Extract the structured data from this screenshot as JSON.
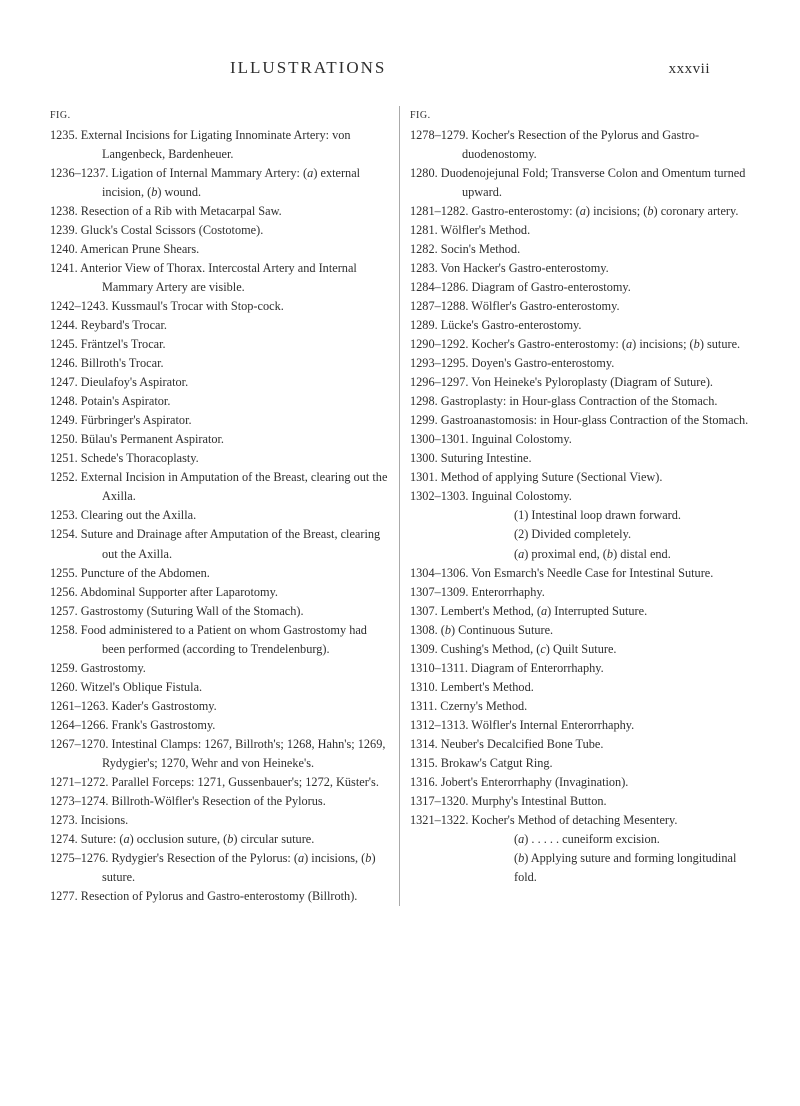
{
  "header": {
    "title": "ILLUSTRATIONS",
    "pagenum": "xxxvii"
  },
  "figLabel": "FIG.",
  "left": {
    "entries": [
      {
        "t": "1235. External Incisions for Ligating Innominate Artery: von Langenbeck, Bardenheuer."
      },
      {
        "t": "1236–1237. Ligation of Internal Mammary Artery: (a) external incision, (b) wound.",
        "i": true
      },
      {
        "t": "1238. Resection of a Rib with Metacarpal Saw."
      },
      {
        "t": "1239. Gluck's Costal Scissors (Costotome)."
      },
      {
        "t": "1240. American Prune Shears."
      },
      {
        "t": "1241. Anterior View of Thorax. Intercostal Artery and Internal Mammary Artery are visible."
      },
      {
        "t": "1242–1243. Kussmaul's Trocar with Stop-cock."
      },
      {
        "t": "1244. Reybard's Trocar."
      },
      {
        "t": "1245. Fräntzel's Trocar."
      },
      {
        "t": "1246. Billroth's Trocar."
      },
      {
        "t": "1247. Dieulafoy's Aspirator."
      },
      {
        "t": "1248. Potain's Aspirator."
      },
      {
        "t": "1249. Fürbringer's Aspirator."
      },
      {
        "t": "1250. Bülau's Permanent Aspirator."
      },
      {
        "t": "1251. Schede's Thoracoplasty."
      },
      {
        "t": "1252. External Incision in Amputation of the Breast, clearing out the Axilla."
      },
      {
        "t": "1253. Clearing out the Axilla."
      },
      {
        "t": "1254. Suture and Drainage after Amputation of the Breast, clearing out the Axilla."
      },
      {
        "t": "1255. Puncture of the Abdomen."
      },
      {
        "t": "1256. Abdominal Supporter after Laparotomy."
      },
      {
        "t": "1257. Gastrostomy (Suturing Wall of the Stomach)."
      },
      {
        "t": "1258. Food administered to a Patient on whom Gastrostomy had been performed (according to Trendelenburg)."
      },
      {
        "t": "1259. Gastrostomy."
      },
      {
        "t": "1260. Witzel's Oblique Fistula."
      },
      {
        "t": "1261–1263. Kader's Gastrostomy."
      },
      {
        "t": "1264–1266. Frank's Gastrostomy."
      },
      {
        "t": "1267–1270. Intestinal Clamps: 1267, Billroth's; 1268, Hahn's; 1269, Rydygier's; 1270, Wehr and von Heineke's."
      },
      {
        "t": "1271–1272. Parallel Forceps: 1271, Gussenbauer's; 1272, Küster's."
      },
      {
        "t": "1273–1274. Billroth-Wölfler's Resection of the Pylorus."
      },
      {
        "t": "1273. Incisions."
      },
      {
        "t": "1274. Suture: (a) occlusion suture, (b) circular suture.",
        "i": true
      },
      {
        "t": "1275–1276. Rydygier's Resection of the Pylorus: (a) incisions, (b) suture.",
        "i": true
      },
      {
        "t": "1277. Resection of Pylorus and Gastro-enterostomy (Billroth)."
      }
    ]
  },
  "right": {
    "entries": [
      {
        "t": "1278–1279. Kocher's Resection of the Pylorus and Gastro-duodenostomy."
      },
      {
        "t": "1280. Duodenojejunal Fold; Transverse Colon and Omentum turned upward."
      },
      {
        "t": "1281–1282. Gastro-enterostomy: (a) incisions; (b) coronary artery.",
        "i": true
      },
      {
        "t": "1281. Wölfler's Method."
      },
      {
        "t": "1282. Socin's Method."
      },
      {
        "t": "1283. Von Hacker's Gastro-enterostomy."
      },
      {
        "t": "1284–1286. Diagram of Gastro-enterostomy."
      },
      {
        "t": "1287–1288. Wölfler's Gastro-enterostomy."
      },
      {
        "t": "1289. Lücke's Gastro-enterostomy."
      },
      {
        "t": "1290–1292. Kocher's Gastro-enterostomy: (a) incisions; (b) suture.",
        "i": true
      },
      {
        "t": "1293–1295. Doyen's Gastro-enterostomy."
      },
      {
        "t": "1296–1297. Von Heineke's Pyloroplasty (Diagram of Suture)."
      },
      {
        "t": "1298. Gastroplasty: in Hour-glass Contraction of the Stomach."
      },
      {
        "t": "1299. Gastroanastomosis: in Hour-glass Contraction of the Stomach."
      },
      {
        "t": "1300–1301. Inguinal Colostomy."
      },
      {
        "t": "1300. Suturing Intestine."
      },
      {
        "t": "1301. Method of applying Suture (Sectional View)."
      },
      {
        "t": "1302–1303. Inguinal Colostomy.",
        "subs": [
          "(1) Intestinal loop drawn forward.",
          "(2) Divided completely.",
          "(a) proximal end, (b) distal end."
        ]
      },
      {
        "t": "1304–1306. Von Esmarch's Needle Case for Intestinal Suture."
      },
      {
        "t": "1307–1309. Enterorrhaphy."
      },
      {
        "t": "1307. Lembert's Method, (a) Interrupted Suture.",
        "i": true
      },
      {
        "t": "1308. (b) Continuous Suture.",
        "i": true
      },
      {
        "t": "1309. Cushing's Method, (c) Quilt Suture.",
        "i": true
      },
      {
        "t": "1310–1311. Diagram of Enterorrhaphy."
      },
      {
        "t": "1310. Lembert's Method."
      },
      {
        "t": "1311. Czerny's Method."
      },
      {
        "t": "1312–1313. Wölfler's Internal Enterorrhaphy."
      },
      {
        "t": "1314. Neuber's Decalcified Bone Tube."
      },
      {
        "t": "1315. Brokaw's Catgut Ring."
      },
      {
        "t": "1316. Jobert's Enterorrhaphy (Invagination)."
      },
      {
        "t": "1317–1320. Murphy's Intestinal Button."
      },
      {
        "t": "1321–1322. Kocher's Method of detaching Mesentery.",
        "subs": [
          "(a) . . . . . cuneiform excision.",
          "(b) Applying suture and forming longitudinal fold."
        ]
      }
    ]
  }
}
